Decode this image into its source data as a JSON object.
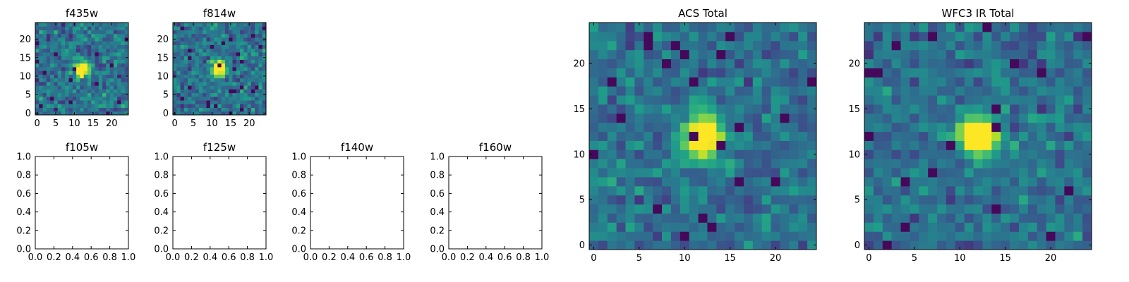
{
  "chart_data": [
    {
      "type": "heatmap",
      "title": "f435w",
      "colormap": "viridis",
      "grid_size": 25,
      "xlim": [
        -0.5,
        24.5
      ],
      "ylim": [
        -0.5,
        24.5
      ],
      "xticks": [
        0,
        5,
        10,
        15,
        20
      ],
      "yticks": [
        0,
        5,
        10,
        15,
        20
      ],
      "source": {
        "center": [
          12,
          12
        ],
        "sigma": 1.4,
        "peak": 0.92,
        "noise": 0.17,
        "seed": 11
      },
      "grid": false
    },
    {
      "type": "heatmap",
      "title": "f814w",
      "colormap": "viridis",
      "grid_size": 25,
      "xlim": [
        -0.5,
        24.5
      ],
      "ylim": [
        -0.5,
        24.5
      ],
      "xticks": [
        0,
        5,
        10,
        15,
        20
      ],
      "yticks": [
        0,
        5,
        10,
        15,
        20
      ],
      "source": {
        "center": [
          12,
          12
        ],
        "sigma": 1.5,
        "peak": 0.9,
        "noise": 0.16,
        "seed": 23
      },
      "grid": false
    },
    {
      "type": "empty",
      "title": "f105w",
      "xlim": [
        0,
        1
      ],
      "ylim": [
        0,
        1
      ],
      "xticks": [
        "0.0",
        "0.2",
        "0.4",
        "0.6",
        "0.8",
        "1.0"
      ],
      "yticks": [
        "0.0",
        "0.2",
        "0.4",
        "0.6",
        "0.8",
        "1.0"
      ]
    },
    {
      "type": "empty",
      "title": "f125w",
      "xlim": [
        0,
        1
      ],
      "ylim": [
        0,
        1
      ],
      "xticks": [
        "0.0",
        "0.2",
        "0.4",
        "0.6",
        "0.8",
        "1.0"
      ],
      "yticks": [
        "0.0",
        "0.2",
        "0.4",
        "0.6",
        "0.8",
        "1.0"
      ]
    },
    {
      "type": "empty",
      "title": "f140w",
      "xlim": [
        0,
        1
      ],
      "ylim": [
        0,
        1
      ],
      "xticks": [
        "0.0",
        "0.2",
        "0.4",
        "0.6",
        "0.8",
        "1.0"
      ],
      "yticks": [
        "0.0",
        "0.2",
        "0.4",
        "0.6",
        "0.8",
        "1.0"
      ]
    },
    {
      "type": "empty",
      "title": "f160w",
      "xlim": [
        0,
        1
      ],
      "ylim": [
        0,
        1
      ],
      "xticks": [
        "0.0",
        "0.2",
        "0.4",
        "0.6",
        "0.8",
        "1.0"
      ],
      "yticks": [
        "0.0",
        "0.2",
        "0.4",
        "0.6",
        "0.8",
        "1.0"
      ]
    },
    {
      "type": "heatmap",
      "title": "ACS Total",
      "colormap": "viridis",
      "grid_size": 25,
      "xlim": [
        -0.5,
        24.5
      ],
      "ylim": [
        -0.5,
        24.5
      ],
      "xticks": [
        0,
        5,
        10,
        15,
        20
      ],
      "yticks": [
        0,
        5,
        10,
        15,
        20
      ],
      "source": {
        "center": [
          12,
          12
        ],
        "sigma": 1.6,
        "peak": 0.95,
        "noise": 0.14,
        "seed": 37
      },
      "grid": false
    },
    {
      "type": "heatmap",
      "title": "WFC3 IR Total",
      "colormap": "viridis",
      "grid_size": 25,
      "xlim": [
        -0.5,
        24.5
      ],
      "ylim": [
        -0.5,
        24.5
      ],
      "xticks": [
        0,
        5,
        10,
        15,
        20
      ],
      "yticks": [
        0,
        5,
        10,
        15,
        20
      ],
      "source": {
        "center": [
          12,
          12
        ],
        "sigma": 1.5,
        "peak": 0.95,
        "noise": 0.14,
        "seed": 53
      },
      "grid": false
    }
  ]
}
